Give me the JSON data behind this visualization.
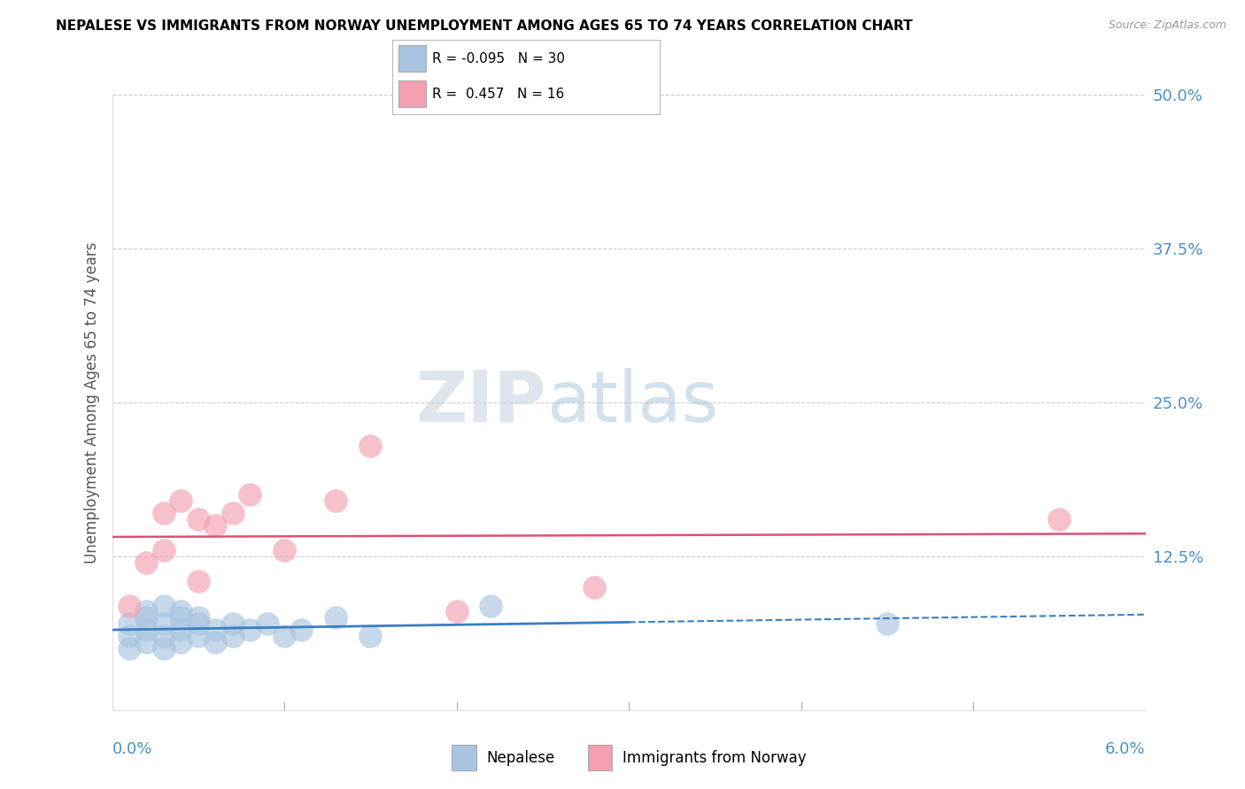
{
  "title": "NEPALESE VS IMMIGRANTS FROM NORWAY UNEMPLOYMENT AMONG AGES 65 TO 74 YEARS CORRELATION CHART",
  "source": "Source: ZipAtlas.com",
  "ylabel": "Unemployment Among Ages 65 to 74 years",
  "right_yticks": [
    0.0,
    0.125,
    0.25,
    0.375,
    0.5
  ],
  "right_yticklabels": [
    "",
    "12.5%",
    "25.0%",
    "37.5%",
    "50.0%"
  ],
  "legend_blue_r": "-0.095",
  "legend_blue_n": "30",
  "legend_pink_r": "0.457",
  "legend_pink_n": "16",
  "blue_color": "#a8c4e0",
  "pink_color": "#f4a0b0",
  "blue_line_color": "#3a7fc1",
  "pink_line_color": "#e05070",
  "blue_dots_x": [
    0.001,
    0.001,
    0.001,
    0.002,
    0.002,
    0.002,
    0.002,
    0.003,
    0.003,
    0.003,
    0.003,
    0.004,
    0.004,
    0.004,
    0.004,
    0.005,
    0.005,
    0.005,
    0.006,
    0.006,
    0.007,
    0.007,
    0.008,
    0.009,
    0.01,
    0.011,
    0.013,
    0.015,
    0.045,
    0.022
  ],
  "blue_dots_y": [
    0.06,
    0.07,
    0.05,
    0.075,
    0.065,
    0.08,
    0.055,
    0.07,
    0.06,
    0.085,
    0.05,
    0.075,
    0.065,
    0.055,
    0.08,
    0.07,
    0.06,
    0.075,
    0.065,
    0.055,
    0.07,
    0.06,
    0.065,
    0.07,
    0.06,
    0.065,
    0.075,
    0.06,
    0.07,
    0.085
  ],
  "pink_dots_x": [
    0.001,
    0.002,
    0.003,
    0.003,
    0.004,
    0.005,
    0.005,
    0.006,
    0.007,
    0.008,
    0.01,
    0.013,
    0.015,
    0.02,
    0.028,
    0.055
  ],
  "pink_dots_y": [
    0.085,
    0.12,
    0.16,
    0.13,
    0.17,
    0.105,
    0.155,
    0.15,
    0.16,
    0.175,
    0.13,
    0.17,
    0.215,
    0.08,
    0.1,
    0.155
  ],
  "xmin": 0.0,
  "xmax": 0.06,
  "ymin": 0.0,
  "ymax": 0.5
}
